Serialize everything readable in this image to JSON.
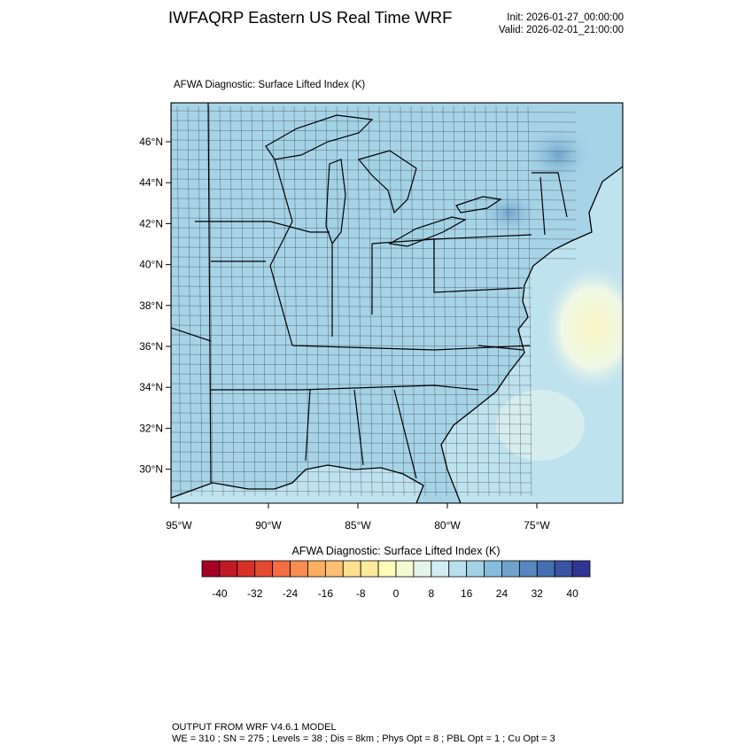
{
  "header": {
    "title": "IWFAQRP Eastern US Real Time WRF",
    "init": "Init: 2026-01-27_00:00:00",
    "valid": "Valid: 2026-02-01_21:00:00"
  },
  "map": {
    "subtitle": "AFWA Diagnostic: Surface Lifted Index   (K)",
    "lat_labels": [
      "46°N",
      "44°N",
      "42°N",
      "40°N",
      "38°N",
      "36°N",
      "34°N",
      "32°N",
      "30°N"
    ],
    "lat_values": [
      46,
      44,
      42,
      40,
      38,
      36,
      34,
      32,
      30
    ],
    "lon_labels": [
      "95°W",
      "90°W",
      "85°W",
      "80°W",
      "75°W"
    ],
    "lon_values": [
      -95,
      -90,
      -85,
      -80,
      -75
    ],
    "colors": {
      "land": "#a7d3e7",
      "ocean": "#bfe2ef",
      "stable_low": "#eef8e6",
      "stable_yellow": "#fbf6c4",
      "high": "#6fa3cd"
    }
  },
  "colorbar": {
    "title": "AFWA Diagnostic: Surface Lifted Index  (K)",
    "range": [
      -44,
      44
    ],
    "step": 4,
    "labels": [
      "-40",
      "-32",
      "-24",
      "-16",
      "-8",
      "0",
      "8",
      "16",
      "24",
      "32",
      "40"
    ],
    "label_values": [
      -40,
      -32,
      -24,
      -16,
      -8,
      0,
      8,
      16,
      24,
      32,
      40
    ],
    "colors": [
      "#a50026",
      "#c01a27",
      "#d73027",
      "#e34a33",
      "#f46d43",
      "#f88d52",
      "#fdae61",
      "#fdbf71",
      "#fee090",
      "#feea9b",
      "#fffbb9",
      "#f3fad2",
      "#e6f5ec",
      "#d2ecf4",
      "#b9dfee",
      "#a3d2e5",
      "#86bcdc",
      "#6fa3cd",
      "#5687bf",
      "#4470b2",
      "#3a54a4",
      "#313695"
    ]
  },
  "footer": {
    "line1": "OUTPUT FROM WRF V4.6.1 MODEL",
    "line2": "WE = 310 ; SN = 275 ; Levels = 38 ; Dis = 8km ; Phys Opt = 8 ; PBL Opt = 1 ; Cu Opt = 3"
  }
}
